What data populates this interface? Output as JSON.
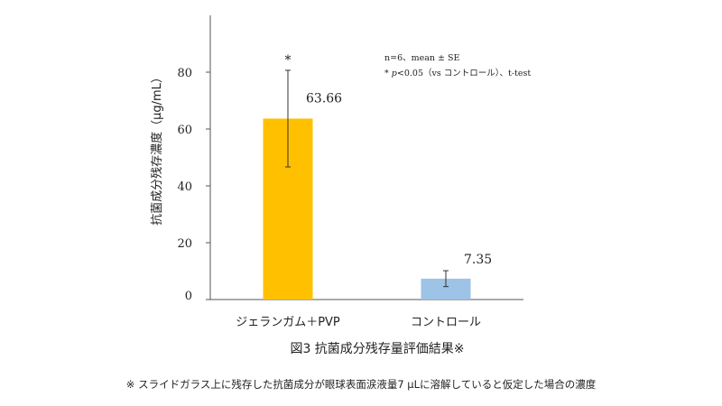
{
  "chart_data": {
    "type": "bar",
    "categories": [
      "ジェランガム＋PVP",
      "コントロール"
    ],
    "values": [
      63.66,
      7.35
    ],
    "value_labels": [
      "63.66",
      "7.35"
    ],
    "error_bars": [
      17,
      2.8
    ],
    "significance": [
      "*",
      ""
    ],
    "ylabel": "抗菌成分残存濃度（μg/mL）",
    "ylim": [
      0,
      100
    ],
    "yticks": [
      0,
      20,
      40,
      60,
      80
    ],
    "colors": [
      "#FFC000",
      "#9DC3E6"
    ],
    "grid": false,
    "legend_notes": {
      "line1": "n=6、mean ± SE",
      "line2_prefix": "* ",
      "line2_italic": "p",
      "line2_rest": "<0.05（vs コントロール）、t-test"
    }
  },
  "caption": {
    "title": "図3 抗菌成分残存量評価結果※",
    "footnote": "※ スライドガラス上に残存した抗菌成分が眼球表面涙液量7 μLに溶解していると仮定した場合の濃度"
  }
}
